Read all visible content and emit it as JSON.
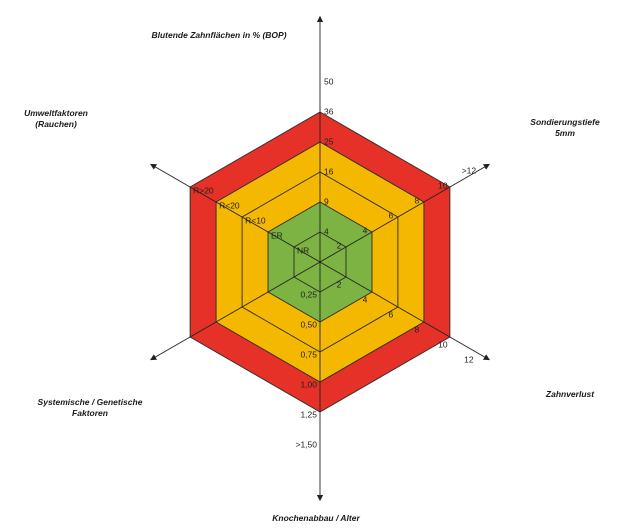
{
  "chart_data": {
    "type": "radar",
    "zone_colors": {
      "low": "#7cb342",
      "moderate": "#f5b800",
      "high": "#e53127"
    },
    "axes": [
      {
        "name": "Blutende Zahnflächen in % (BOP)",
        "ticks": [
          "4",
          "9",
          "16",
          "25",
          "36",
          "50"
        ]
      },
      {
        "name": "Sondierungstiefe 5mm",
        "ticks": [
          "2",
          "4",
          "6",
          "8",
          "10",
          ">12"
        ]
      },
      {
        "name": "Zahnverlust",
        "ticks": [
          "2",
          "4",
          "6",
          "8",
          "10",
          "12"
        ]
      },
      {
        "name": "Knochenabbau / Alter",
        "ticks": [
          "0,25",
          "0,50",
          "0,75",
          "1,00",
          "1,25",
          ">1,50"
        ]
      },
      {
        "name": "Systemische / Genetische Faktoren",
        "ticks": []
      },
      {
        "name": "Umweltfaktoren (Rauchen)",
        "ticks": [
          "NR",
          "ER",
          "R<10",
          "R<20",
          "R>20"
        ]
      }
    ]
  }
}
